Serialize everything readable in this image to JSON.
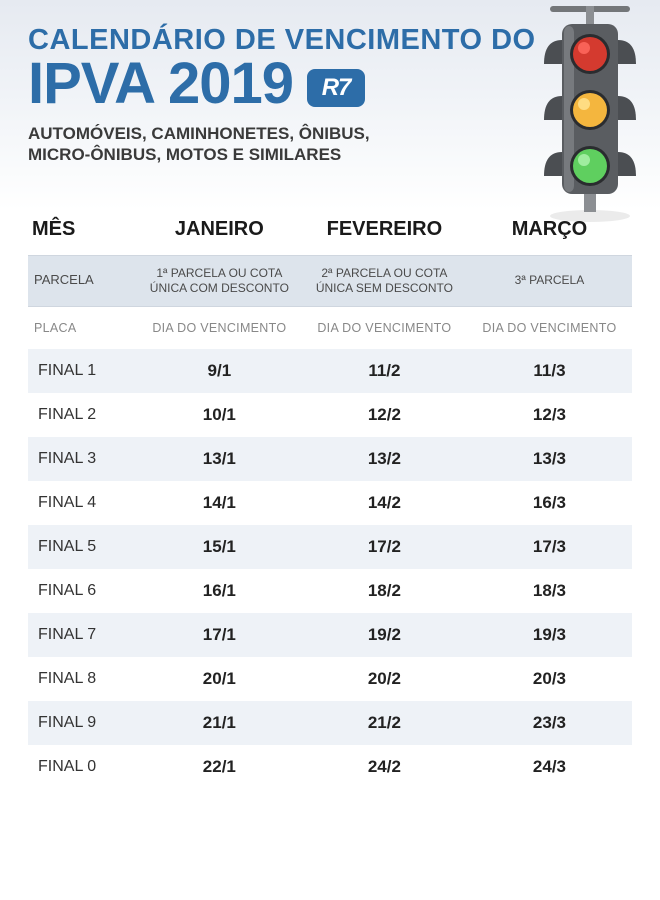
{
  "header": {
    "title_line1": "CALENDÁRIO DE VENCIMENTO DO",
    "title_line2": "IPVA 2019",
    "badge": "R7",
    "subtitle": "AUTOMÓVEIS, CAMINHONETES, ÔNIBUS, MICRO-ÔNIBUS, MOTOS E SIMILARES"
  },
  "traffic_light": {
    "body_color": "#5a5d61",
    "body_highlight": "#8a8d91",
    "pole_color": "#8c8f93",
    "arm_color": "#737679",
    "cap_color": "#4b4e52",
    "lights": [
      {
        "color": "#d43a2f",
        "glow": "#ff6a5e"
      },
      {
        "color": "#f4b63e",
        "glow": "#ffe08a"
      },
      {
        "color": "#5fcf5f",
        "glow": "#a6f0a6"
      }
    ]
  },
  "table": {
    "mes_label": "MÊS",
    "parcela_label": "PARCELA",
    "placa_label": "PLACA",
    "due_label": "DIA DO VENCIMENTO",
    "months": [
      {
        "name": "JANEIRO",
        "parcela": "1ª PARCELA OU COTA ÚNICA COM DESCONTO"
      },
      {
        "name": "FEVEREIRO",
        "parcela": "2ª PARCELA OU COTA ÚNICA SEM DESCONTO"
      },
      {
        "name": "MARÇO",
        "parcela": "3ª PARCELA"
      }
    ],
    "rows": [
      {
        "placa": "FINAL 1",
        "dates": [
          "9/1",
          "11/2",
          "11/3"
        ]
      },
      {
        "placa": "FINAL 2",
        "dates": [
          "10/1",
          "12/2",
          "12/3"
        ]
      },
      {
        "placa": "FINAL 3",
        "dates": [
          "13/1",
          "13/2",
          "13/3"
        ]
      },
      {
        "placa": "FINAL 4",
        "dates": [
          "14/1",
          "14/2",
          "16/3"
        ]
      },
      {
        "placa": "FINAL 5",
        "dates": [
          "15/1",
          "17/2",
          "17/3"
        ]
      },
      {
        "placa": "FINAL 6",
        "dates": [
          "16/1",
          "18/2",
          "18/3"
        ]
      },
      {
        "placa": "FINAL 7",
        "dates": [
          "17/1",
          "19/2",
          "19/3"
        ]
      },
      {
        "placa": "FINAL 8",
        "dates": [
          "20/1",
          "20/2",
          "20/3"
        ]
      },
      {
        "placa": "FINAL 9",
        "dates": [
          "21/1",
          "21/2",
          "23/3"
        ]
      },
      {
        "placa": "FINAL 0",
        "dates": [
          "22/1",
          "24/2",
          "24/3"
        ]
      }
    ]
  },
  "colors": {
    "title": "#2d6da8",
    "header_grad_top": "#e6eaf1",
    "header_grad_bottom": "#ffffff",
    "stripe_bg": "#eef2f7",
    "parcela_bg": "#dde4ec",
    "text_dark": "#1a1a1a",
    "text_muted": "#888888"
  }
}
